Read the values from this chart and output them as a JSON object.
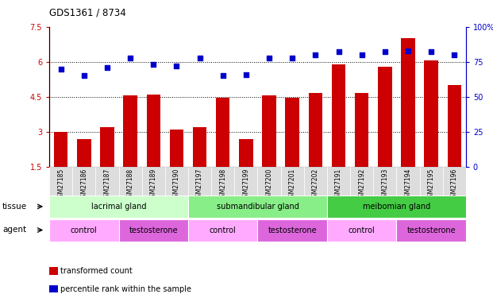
{
  "title": "GDS1361 / 8734",
  "samples": [
    "GSM27185",
    "GSM27186",
    "GSM27187",
    "GSM27188",
    "GSM27189",
    "GSM27190",
    "GSM27197",
    "GSM27198",
    "GSM27199",
    "GSM27200",
    "GSM27201",
    "GSM27202",
    "GSM27191",
    "GSM27192",
    "GSM27193",
    "GSM27194",
    "GSM27195",
    "GSM27196"
  ],
  "transformed_count": [
    3.0,
    2.7,
    3.2,
    4.55,
    4.6,
    3.1,
    3.2,
    4.45,
    2.7,
    4.55,
    4.45,
    4.65,
    5.9,
    4.65,
    5.8,
    7.0,
    6.05,
    5.0
  ],
  "percentile_rank": [
    70,
    65,
    71,
    78,
    73,
    72,
    78,
    65,
    66,
    78,
    78,
    80,
    82,
    80,
    82,
    83,
    82,
    80
  ],
  "bar_color": "#cc0000",
  "scatter_color": "#0000cc",
  "ylim_left": [
    1.5,
    7.5
  ],
  "ylim_right": [
    0,
    100
  ],
  "yticks_left": [
    1.5,
    3.0,
    4.5,
    6.0,
    7.5
  ],
  "yticks_right": [
    0,
    25,
    50,
    75,
    100
  ],
  "ytick_labels_left": [
    "1.5",
    "3",
    "4.5",
    "6",
    "7.5"
  ],
  "ytick_labels_right": [
    "0",
    "25",
    "50",
    "75",
    "100%"
  ],
  "hlines": [
    3.0,
    4.5,
    6.0
  ],
  "tissue_groups": [
    {
      "label": "lacrimal gland",
      "start": 0,
      "end": 6,
      "color": "#ccffcc"
    },
    {
      "label": "submandibular gland",
      "start": 6,
      "end": 12,
      "color": "#88ee88"
    },
    {
      "label": "meibomian gland",
      "start": 12,
      "end": 18,
      "color": "#44cc44"
    }
  ],
  "agent_groups": [
    {
      "label": "control",
      "start": 0,
      "end": 3,
      "color": "#ffaaff"
    },
    {
      "label": "testosterone",
      "start": 3,
      "end": 6,
      "color": "#dd66dd"
    },
    {
      "label": "control",
      "start": 6,
      "end": 9,
      "color": "#ffaaff"
    },
    {
      "label": "testosterone",
      "start": 9,
      "end": 12,
      "color": "#dd66dd"
    },
    {
      "label": "control",
      "start": 12,
      "end": 15,
      "color": "#ffaaff"
    },
    {
      "label": "testosterone",
      "start": 15,
      "end": 18,
      "color": "#dd66dd"
    }
  ],
  "legend_items": [
    {
      "label": "transformed count",
      "color": "#cc0000"
    },
    {
      "label": "percentile rank within the sample",
      "color": "#0000cc"
    }
  ],
  "tissue_label": "tissue",
  "agent_label": "agent",
  "background_color": "#ffffff",
  "plot_bg_color": "#ffffff",
  "bar_width": 0.6
}
